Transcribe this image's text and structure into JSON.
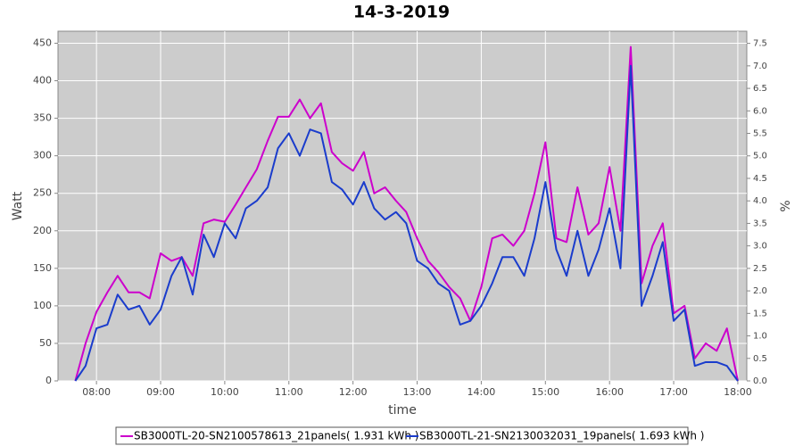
{
  "chart_data": {
    "type": "line",
    "title": "14-3-2019",
    "xlabel": "time",
    "ylabel": "Watt",
    "y2label": "%",
    "x": [
      7.5,
      7.67,
      7.83,
      8.0,
      8.17,
      8.33,
      8.5,
      8.67,
      8.83,
      9.0,
      9.17,
      9.33,
      9.5,
      9.67,
      9.83,
      10.0,
      10.17,
      10.33,
      10.5,
      10.67,
      10.83,
      11.0,
      11.17,
      11.33,
      11.5,
      11.67,
      11.83,
      12.0,
      12.17,
      12.33,
      12.5,
      12.67,
      12.83,
      13.0,
      13.17,
      13.33,
      13.5,
      13.67,
      13.83,
      14.0,
      14.17,
      14.33,
      14.5,
      14.67,
      14.83,
      15.0,
      15.17,
      15.33,
      15.5,
      15.67,
      15.83,
      16.0,
      16.17,
      16.33,
      16.5,
      16.67,
      16.83,
      17.0,
      17.17,
      17.33,
      17.5,
      17.67,
      17.83,
      18.0
    ],
    "series": [
      {
        "name": "SB3000TL-20-SN2100578613_21panels( 1.931 kWh )",
        "color": "#cc00cc",
        "values": [
          null,
          0,
          50,
          92,
          118,
          140,
          118,
          118,
          110,
          170,
          160,
          165,
          140,
          210,
          215,
          212,
          235,
          258,
          282,
          320,
          352,
          352,
          375,
          350,
          370,
          305,
          290,
          280,
          305,
          250,
          258,
          240,
          225,
          190,
          160,
          145,
          125,
          110,
          80,
          125,
          190,
          195,
          180,
          200,
          250,
          318,
          190,
          185,
          258,
          195,
          210,
          285,
          200,
          445,
          130,
          180,
          210,
          90,
          100,
          30,
          50,
          40,
          70,
          0
        ]
      },
      {
        "name": "SB3000TL-21-SN2130032031_19panels( 1.693 kWh )",
        "color": "#1a3ccc",
        "values": [
          null,
          0,
          20,
          70,
          75,
          115,
          95,
          100,
          75,
          95,
          140,
          165,
          115,
          195,
          165,
          210,
          190,
          230,
          240,
          258,
          310,
          330,
          300,
          335,
          330,
          265,
          255,
          235,
          265,
          230,
          215,
          225,
          210,
          160,
          150,
          130,
          120,
          75,
          80,
          100,
          130,
          165,
          165,
          140,
          190,
          265,
          175,
          140,
          200,
          140,
          175,
          230,
          150,
          420,
          100,
          140,
          185,
          80,
          95,
          20,
          25,
          25,
          20,
          0
        ]
      }
    ],
    "xlim": [
      7.4,
      18.14
    ],
    "xticks": [
      {
        "value": 8,
        "label": "08:00"
      },
      {
        "value": 9,
        "label": "09:00"
      },
      {
        "value": 10,
        "label": "10:00"
      },
      {
        "value": 11,
        "label": "11:00"
      },
      {
        "value": 12,
        "label": "12:00"
      },
      {
        "value": 13,
        "label": "13:00"
      },
      {
        "value": 14,
        "label": "14:00"
      },
      {
        "value": 15,
        "label": "15:00"
      },
      {
        "value": 16,
        "label": "16:00"
      },
      {
        "value": 17,
        "label": "17:00"
      },
      {
        "value": 18,
        "label": "18:00"
      }
    ],
    "ylim": [
      0,
      466
    ],
    "yticks": [
      0,
      50,
      100,
      150,
      200,
      250,
      300,
      350,
      400,
      450
    ],
    "y2lim": [
      0,
      7.77
    ],
    "y2ticks": [
      {
        "value": 0,
        "label": "0.0"
      },
      {
        "value": 0.5,
        "label": "0.5"
      },
      {
        "value": 1,
        "label": "1.0"
      },
      {
        "value": 1.5,
        "label": "1.5"
      },
      {
        "value": 2,
        "label": "2.0"
      },
      {
        "value": 2.5,
        "label": "2.5"
      },
      {
        "value": 3,
        "label": "3.0"
      },
      {
        "value": 3.5,
        "label": "3.5"
      },
      {
        "value": 4,
        "label": "4.0"
      },
      {
        "value": 4.5,
        "label": "4.5"
      },
      {
        "value": 5,
        "label": "5.0"
      },
      {
        "value": 5.5,
        "label": "5.5"
      },
      {
        "value": 6,
        "label": "6.0"
      },
      {
        "value": 6.5,
        "label": "6.5"
      },
      {
        "value": 7,
        "label": "7.0"
      },
      {
        "value": 7.5,
        "label": "7.5"
      }
    ],
    "grid": true
  }
}
